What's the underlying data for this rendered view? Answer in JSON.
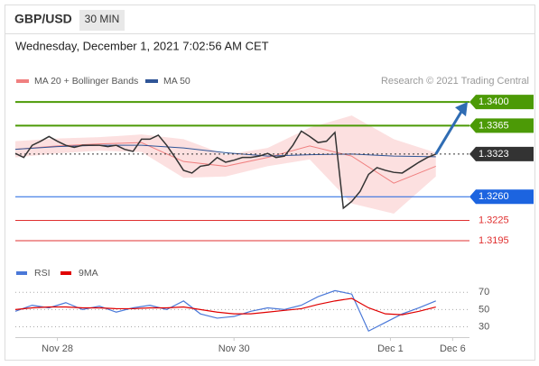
{
  "header": {
    "symbol": "GBP/USD",
    "interval": "30 MIN",
    "timestamp": "Wednesday, December 1, 2021 7:02:56 AM CET",
    "credit": "Research © 2021 Trading Central"
  },
  "chart_data": [
    {
      "type": "line",
      "x": [
        0,
        1,
        2,
        3,
        4,
        5,
        6,
        7,
        8,
        9,
        10,
        11,
        12,
        13,
        14,
        15,
        16,
        17,
        18,
        19,
        20,
        21,
        22,
        23,
        24,
        25,
        26,
        27,
        28,
        29,
        30,
        31,
        32,
        33,
        34,
        35,
        36,
        37,
        38,
        39,
        40,
        41,
        42,
        43,
        44,
        45,
        46,
        47,
        48,
        49,
        50
      ],
      "price": {
        "color": "#333333",
        "values": [
          1.3324,
          1.3318,
          1.3336,
          1.3342,
          1.3349,
          1.3342,
          1.3336,
          1.3333,
          1.3336,
          1.3336,
          1.3336,
          1.3334,
          1.3336,
          1.333,
          1.3327,
          1.3345,
          1.3345,
          1.3351,
          1.3336,
          1.3318,
          1.3299,
          1.3295,
          1.3305,
          1.3307,
          1.3318,
          1.3311,
          1.3314,
          1.3318,
          1.3318,
          1.332,
          1.3324,
          1.3318,
          1.332,
          1.3336,
          1.3357,
          1.3349,
          1.334,
          1.3342,
          1.3355,
          1.3243,
          1.3253,
          1.3268,
          1.3293,
          1.3303,
          1.3299,
          1.3296,
          1.3295,
          1.3303,
          1.3311,
          1.3318,
          1.3323
        ]
      },
      "series": [
        {
          "name": "MA 20 + Bollinger Bands",
          "color": "#f08080",
          "band_color": "#fbd5d5",
          "x": [
            0,
            5,
            10,
            15,
            20,
            25,
            30,
            35,
            40,
            45,
            50
          ],
          "values": [
            1.333,
            1.3335,
            1.3338,
            1.334,
            1.3312,
            1.3305,
            1.3318,
            1.3335,
            1.332,
            1.328,
            1.3305
          ],
          "upper": [
            1.3342,
            1.3346,
            1.3348,
            1.3352,
            1.3345,
            1.3322,
            1.3332,
            1.3362,
            1.338,
            1.3345,
            1.3325
          ],
          "lower": [
            1.3318,
            1.3324,
            1.3328,
            1.3326,
            1.3288,
            1.329,
            1.3305,
            1.3315,
            1.325,
            1.3235,
            1.329
          ]
        },
        {
          "name": "MA 50",
          "color": "#2f5597",
          "x": [
            0,
            5,
            10,
            15,
            20,
            25,
            30,
            35,
            40,
            45,
            50
          ],
          "values": [
            1.333,
            1.3334,
            1.3336,
            1.3336,
            1.3332,
            1.3325,
            1.332,
            1.3322,
            1.3323,
            1.332,
            1.3319
          ]
        }
      ],
      "levels": [
        {
          "value": 1.34,
          "label": "1.3400",
          "color": "#4c9a06",
          "style": "box"
        },
        {
          "value": 1.3365,
          "label": "1.3365",
          "color": "#4c9a06",
          "style": "box"
        },
        {
          "value": 1.3323,
          "label": "1.3323",
          "color": "#333333",
          "style": "box"
        },
        {
          "value": 1.326,
          "label": "1.3260",
          "color": "#1c64e0",
          "style": "box"
        },
        {
          "value": 1.3225,
          "label": "1.3225",
          "color": "#e03030",
          "style": "text"
        },
        {
          "value": 1.3195,
          "label": "1.3195",
          "color": "#e03030",
          "style": "text"
        }
      ],
      "xlim": [
        0,
        54
      ],
      "ylim": [
        1.3175,
        1.34175
      ],
      "xticks": [
        {
          "value": 5,
          "label": "Nov 28"
        },
        {
          "value": 26,
          "label": "Nov 30"
        },
        {
          "value": 44.6,
          "label": "Dec 1"
        },
        {
          "value": 52,
          "label": "Dec 6"
        }
      ]
    },
    {
      "type": "line",
      "x": [
        0,
        2,
        4,
        6,
        8,
        10,
        12,
        14,
        16,
        18,
        20,
        22,
        24,
        26,
        28,
        30,
        32,
        34,
        36,
        38,
        40,
        42,
        44,
        46,
        48,
        50
      ],
      "series": [
        {
          "name": "RSI",
          "color": "#4a78d8",
          "values": [
            48,
            55,
            52,
            58,
            50,
            54,
            47,
            52,
            55,
            50,
            60,
            45,
            40,
            42,
            48,
            52,
            50,
            55,
            65,
            72,
            68,
            25,
            35,
            45,
            52,
            60
          ]
        },
        {
          "name": "9MA",
          "color": "#e00000",
          "values": [
            50,
            52,
            53,
            53,
            52,
            52,
            51,
            51,
            52,
            52,
            53,
            50,
            47,
            45,
            45,
            47,
            49,
            51,
            56,
            60,
            63,
            52,
            45,
            44,
            48,
            53
          ]
        }
      ],
      "xlim": [
        0,
        54
      ],
      "ylim": [
        20,
        85
      ],
      "yticks": [
        30,
        50,
        70
      ]
    }
  ]
}
